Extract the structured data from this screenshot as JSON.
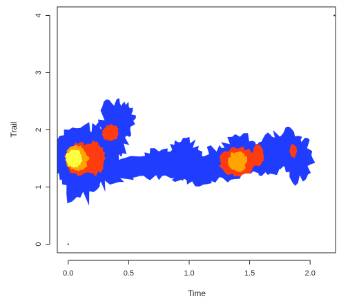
{
  "chart_data": {
    "type": "heatmap",
    "title": "",
    "xlabel": "Time",
    "ylabel": "Trail",
    "xlim": [
      -0.09,
      2.21
    ],
    "ylim": [
      -0.15,
      4.15
    ],
    "x_ticks": [
      "0.0",
      "0.5",
      "1.0",
      "1.5",
      "2.0"
    ],
    "x_tick_values": [
      0,
      0.5,
      1.0,
      1.5,
      2.0
    ],
    "y_ticks": [
      "0",
      "1",
      "2",
      "3",
      "4"
    ],
    "y_tick_values": [
      0,
      1,
      2,
      3,
      4
    ],
    "grid": false,
    "legend": "none",
    "colors": {
      "low": "#1f3cff",
      "medium": "#ff3b10",
      "high": "#ffa500",
      "peak": "#ffff40"
    },
    "density_level_order": [
      "low",
      "medium",
      "high",
      "peak"
    ],
    "isolated_points": [
      {
        "x": 0.0,
        "y": 0.0
      },
      {
        "x": 2.2,
        "y": 4.0
      }
    ],
    "density_regions": [
      {
        "level": "low",
        "x": 0.0,
        "y": 1.5,
        "w": 0.2,
        "h": 0.35
      },
      {
        "level": "low",
        "x": 0.1,
        "y": 1.4,
        "w": 0.2,
        "h": 0.65
      },
      {
        "level": "low",
        "x": 0.25,
        "y": 1.55,
        "w": 0.15,
        "h": 0.55
      },
      {
        "level": "low",
        "x": 0.38,
        "y": 2.0,
        "w": 0.12,
        "h": 0.5
      },
      {
        "level": "low",
        "x": 0.45,
        "y": 2.2,
        "w": 0.1,
        "h": 0.3
      },
      {
        "level": "low",
        "x": 0.3,
        "y": 1.25,
        "w": 0.25,
        "h": 0.18
      },
      {
        "level": "low",
        "x": 0.55,
        "y": 1.35,
        "w": 0.2,
        "h": 0.18
      },
      {
        "level": "low",
        "x": 0.75,
        "y": 1.4,
        "w": 0.2,
        "h": 0.25
      },
      {
        "level": "low",
        "x": 0.95,
        "y": 1.5,
        "w": 0.15,
        "h": 0.35
      },
      {
        "level": "low",
        "x": 1.05,
        "y": 1.3,
        "w": 0.2,
        "h": 0.25
      },
      {
        "level": "low",
        "x": 1.25,
        "y": 1.4,
        "w": 0.2,
        "h": 0.3
      },
      {
        "level": "low",
        "x": 1.45,
        "y": 1.55,
        "w": 0.2,
        "h": 0.35
      },
      {
        "level": "low",
        "x": 1.65,
        "y": 1.55,
        "w": 0.15,
        "h": 0.35
      },
      {
        "level": "low",
        "x": 1.8,
        "y": 1.65,
        "w": 0.15,
        "h": 0.35
      },
      {
        "level": "low",
        "x": 1.9,
        "y": 1.5,
        "w": 0.12,
        "h": 0.4
      },
      {
        "level": "medium",
        "x": 0.1,
        "y": 1.5,
        "w": 0.13,
        "h": 0.28
      },
      {
        "level": "medium",
        "x": 0.22,
        "y": 1.5,
        "w": 0.08,
        "h": 0.3
      },
      {
        "level": "medium",
        "x": 0.35,
        "y": 1.95,
        "w": 0.07,
        "h": 0.15
      },
      {
        "level": "medium",
        "x": 1.4,
        "y": 1.45,
        "w": 0.15,
        "h": 0.25
      },
      {
        "level": "medium",
        "x": 1.57,
        "y": 1.55,
        "w": 0.05,
        "h": 0.2
      },
      {
        "level": "medium",
        "x": 1.86,
        "y": 1.63,
        "w": 0.03,
        "h": 0.12
      },
      {
        "level": "high",
        "x": 0.07,
        "y": 1.5,
        "w": 0.1,
        "h": 0.22
      },
      {
        "level": "high",
        "x": 1.4,
        "y": 1.45,
        "w": 0.08,
        "h": 0.18
      },
      {
        "level": "peak",
        "x": 0.05,
        "y": 1.5,
        "w": 0.07,
        "h": 0.16
      }
    ]
  }
}
